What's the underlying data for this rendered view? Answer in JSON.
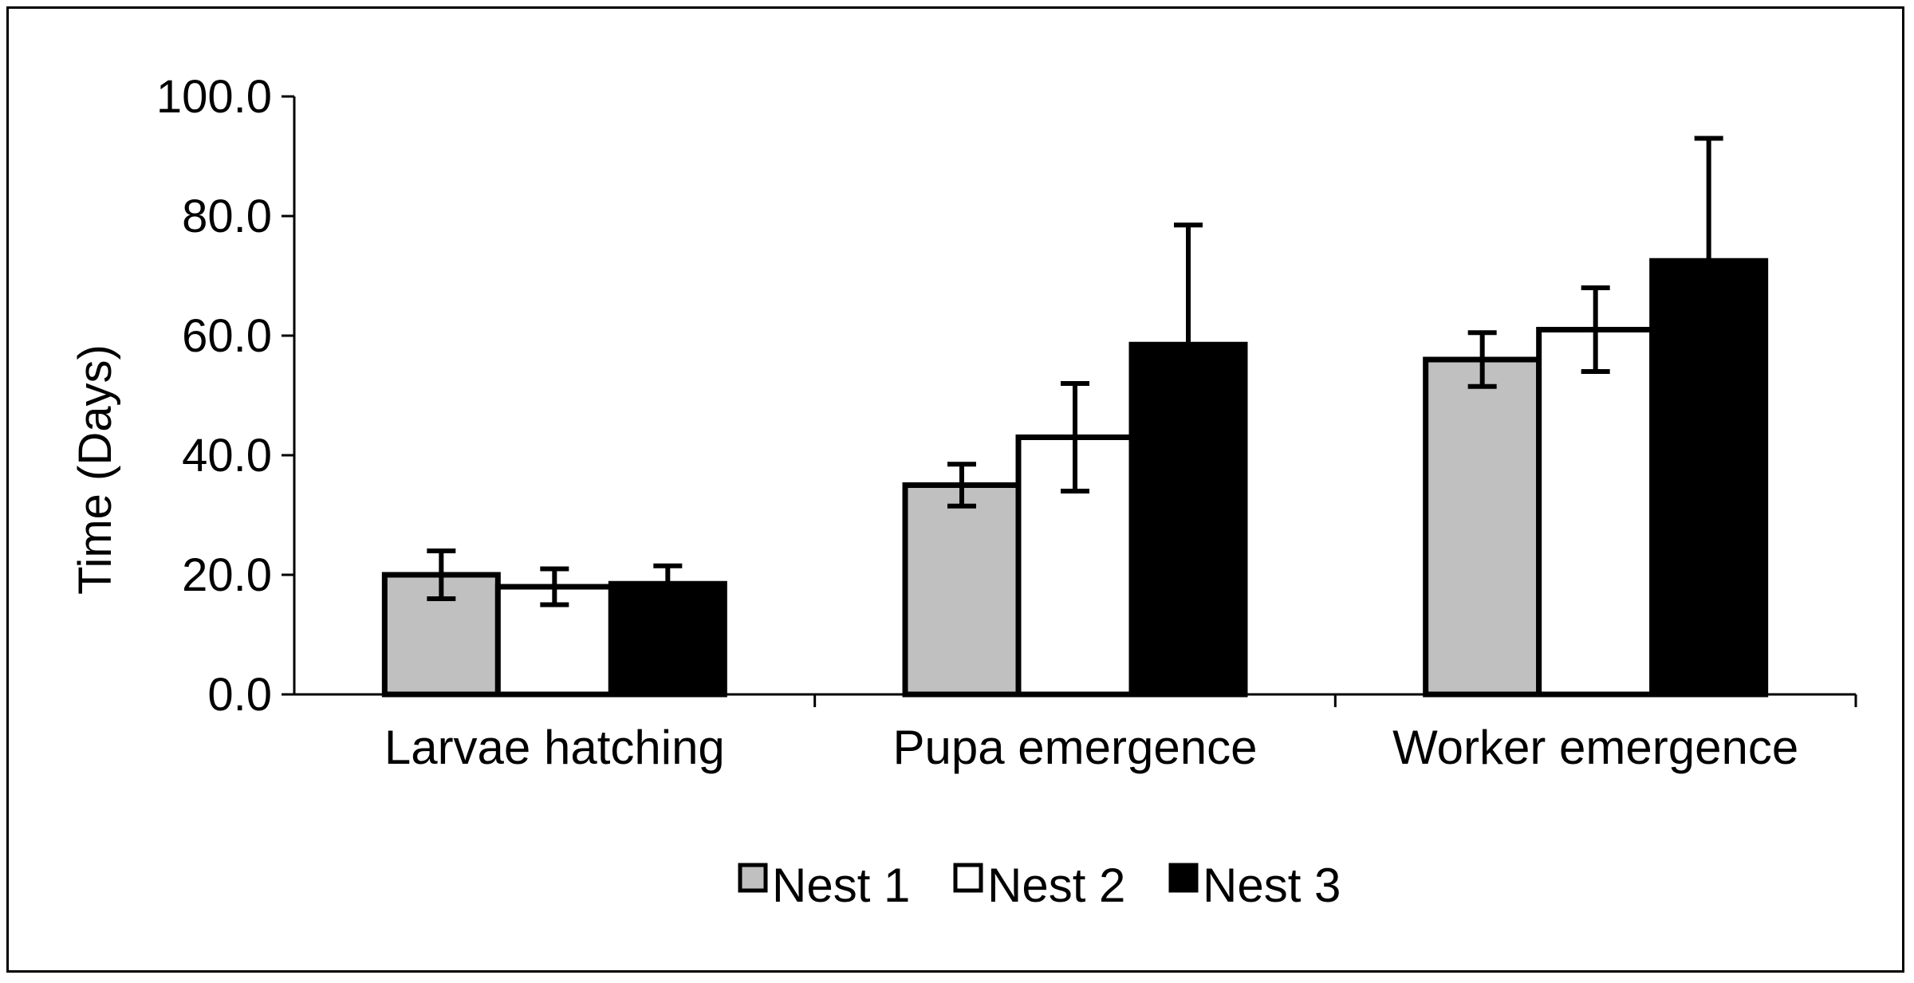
{
  "chart_data": {
    "type": "bar",
    "title": "",
    "xlabel": "",
    "ylabel": "Time (Days)",
    "ylim": [
      0,
      100
    ],
    "yticks": [
      0,
      20,
      40,
      60,
      80,
      100
    ],
    "ytick_labels": [
      "0.0",
      "20.0",
      "40.0",
      "60.0",
      "80.0",
      "100.0"
    ],
    "categories": [
      "Larvae hatching",
      "Pupa emergence",
      "Worker emergence"
    ],
    "series": [
      {
        "name": "Nest 1",
        "color": "#c0c0c0",
        "values": [
          20,
          35,
          56
        ],
        "errors": [
          4,
          3.5,
          4.5
        ]
      },
      {
        "name": "Nest 2",
        "color": "#ffffff",
        "values": [
          18,
          43,
          61
        ],
        "errors": [
          3,
          9,
          7
        ]
      },
      {
        "name": "Nest 3",
        "color": "#000000",
        "values": [
          18.5,
          58.5,
          72.5
        ],
        "errors": [
          3,
          20,
          20.5
        ]
      }
    ],
    "legend_position": "bottom-center",
    "grid": false
  }
}
